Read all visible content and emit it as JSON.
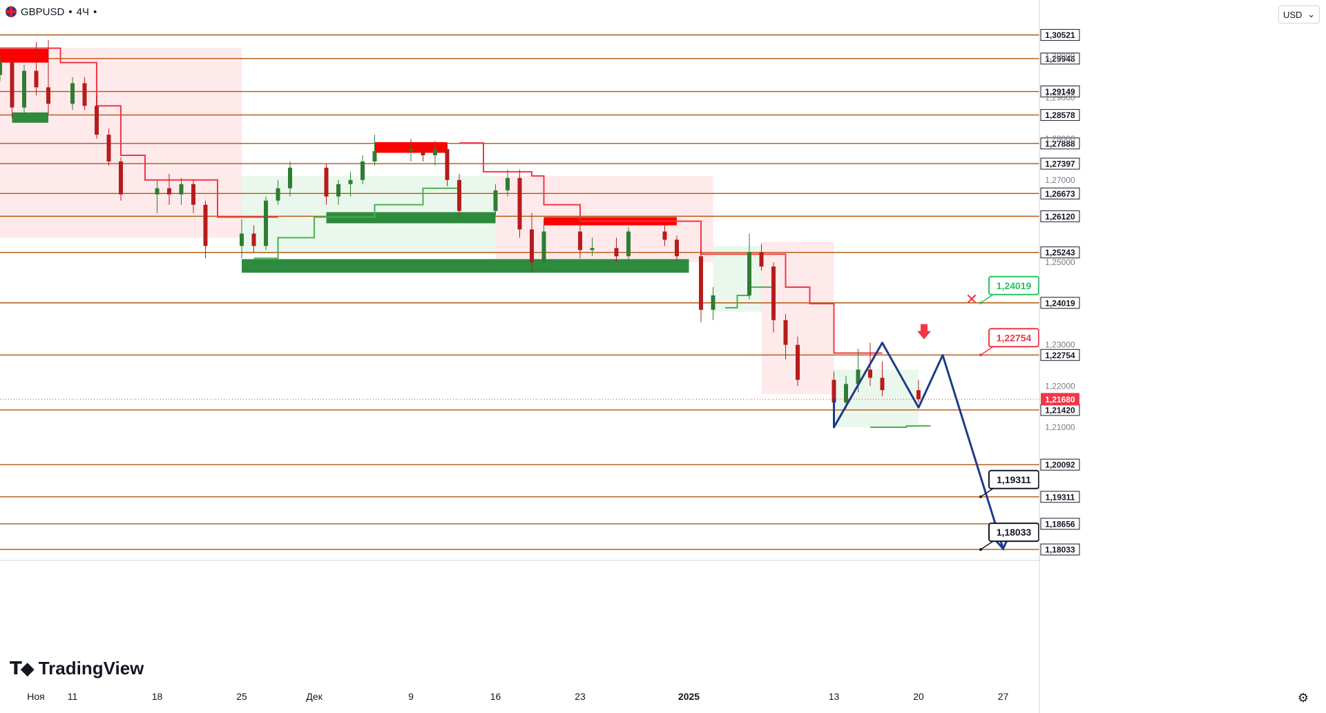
{
  "header": {
    "symbol": "GBPUSD",
    "separator": "•",
    "timeframe": "4Ч",
    "currency_label": "USD",
    "brand": "TradingView"
  },
  "icons": [
    "gbpusd-flag-icon",
    "chevron-down-icon",
    "tradingview-logo-icon",
    "settings-gear-icon",
    "arrow-down-icon",
    "cross-icon"
  ],
  "colors": {
    "level_line": "#b45309",
    "supply_zone": "#ff0000",
    "demand_zone": "#2e8b3e",
    "resistance_line": "#f23645",
    "support_line": "#4caf50",
    "projection": "#1e3a8a",
    "candle_up": "#2e7d32",
    "candle_down": "#b71c1c",
    "label_dark": "#131722",
    "current_price": "#f23645"
  },
  "chart_data": {
    "type": "candlestick",
    "title": "GBPUSD • 4Ч",
    "x_axis": {
      "ticks": [
        "Ноя",
        "11",
        "18",
        "25",
        "Дек",
        "9",
        "16",
        "23",
        "2025",
        "13",
        "20",
        "27"
      ],
      "range": [
        "2024-11-05",
        "2025-01-30"
      ]
    },
    "y_axis": {
      "range": [
        1.178,
        1.309
      ],
      "price_ticks": [
        "1,21000",
        "1,22000",
        "1,23000",
        "1,25000",
        "1,27000",
        "1,28000",
        "1,29000",
        "1,30000"
      ]
    },
    "horizontal_levels": [
      "1,30521",
      "1,29948",
      "1,29149",
      "1,28578",
      "1,27888",
      "1,27397",
      "1,26673",
      "1,26120",
      "1,25243",
      "1,24019",
      "1,22754",
      "1,21420",
      "1,20092",
      "1,19311",
      "1,18656",
      "1,18033"
    ],
    "current_price": "1,21680",
    "callouts": [
      {
        "text": "1,24019",
        "style": "green-outline",
        "marker": "cross"
      },
      {
        "text": "1,22754",
        "style": "red-outline",
        "marker": "arrow-down"
      },
      {
        "text": "1,19311",
        "style": "black-outline"
      },
      {
        "text": "1,18033",
        "style": "black-outline"
      }
    ],
    "zones": [
      {
        "type": "supply",
        "from": "2024-11-05",
        "to": "2024-11-09",
        "y": [
          1.2985,
          1.3018
        ]
      },
      {
        "type": "demand",
        "from": "2024-11-06",
        "to": "2024-11-09",
        "y": [
          1.2839,
          1.2864
        ]
      },
      {
        "type": "supply",
        "from": "2024-12-06",
        "to": "2024-12-12",
        "y": [
          1.2766,
          1.2792
        ]
      },
      {
        "type": "demand",
        "from": "2024-12-02",
        "to": "2024-12-16",
        "y": [
          1.2595,
          1.2622
        ]
      },
      {
        "type": "supply",
        "from": "2024-12-20",
        "to": "2024-12-31",
        "y": [
          1.259,
          1.261
        ]
      },
      {
        "type": "demand",
        "from": "2024-11-25",
        "to": "2025-01-01",
        "y": [
          1.2475,
          1.2508
        ]
      }
    ],
    "projection_path": [
      {
        "x": "2025-01-13",
        "y": 1.217
      },
      {
        "x": "2025-01-13",
        "y": 1.21
      },
      {
        "x": "2025-01-17",
        "y": 1.2305
      },
      {
        "x": "2025-01-20",
        "y": 1.2148
      },
      {
        "x": "2025-01-22",
        "y": 1.2275
      },
      {
        "x": "2025-01-27",
        "y": 1.1805
      }
    ],
    "candles": [
      {
        "t": "2024-11-05",
        "o": 1.2955,
        "h": 1.3002,
        "l": 1.294,
        "c": 1.2985
      },
      {
        "t": "2024-11-06",
        "o": 1.2985,
        "h": 1.301,
        "l": 1.285,
        "c": 1.2876
      },
      {
        "t": "2024-11-07",
        "o": 1.2876,
        "h": 1.298,
        "l": 1.286,
        "c": 1.2965
      },
      {
        "t": "2024-11-08",
        "o": 1.2965,
        "h": 1.3035,
        "l": 1.2905,
        "c": 1.2925
      },
      {
        "t": "2024-11-09",
        "o": 1.2925,
        "h": 1.304,
        "l": 1.286,
        "c": 1.2885
      },
      {
        "t": "2024-11-11",
        "o": 1.2885,
        "h": 1.295,
        "l": 1.287,
        "c": 1.2935
      },
      {
        "t": "2024-11-12",
        "o": 1.2935,
        "h": 1.295,
        "l": 1.287,
        "c": 1.288
      },
      {
        "t": "2024-11-13",
        "o": 1.288,
        "h": 1.2905,
        "l": 1.28,
        "c": 1.281
      },
      {
        "t": "2024-11-14",
        "o": 1.281,
        "h": 1.2825,
        "l": 1.2735,
        "c": 1.2745
      },
      {
        "t": "2024-11-15",
        "o": 1.2745,
        "h": 1.2755,
        "l": 1.265,
        "c": 1.2665
      },
      {
        "t": "2024-11-18",
        "o": 1.2665,
        "h": 1.27,
        "l": 1.262,
        "c": 1.268
      },
      {
        "t": "2024-11-19",
        "o": 1.268,
        "h": 1.2715,
        "l": 1.264,
        "c": 1.2665
      },
      {
        "t": "2024-11-20",
        "o": 1.2665,
        "h": 1.2705,
        "l": 1.264,
        "c": 1.269
      },
      {
        "t": "2024-11-21",
        "o": 1.269,
        "h": 1.27,
        "l": 1.262,
        "c": 1.264
      },
      {
        "t": "2024-11-22",
        "o": 1.264,
        "h": 1.265,
        "l": 1.251,
        "c": 1.254
      },
      {
        "t": "2024-11-25",
        "o": 1.254,
        "h": 1.2605,
        "l": 1.251,
        "c": 1.257
      },
      {
        "t": "2024-11-26",
        "o": 1.257,
        "h": 1.259,
        "l": 1.2525,
        "c": 1.254
      },
      {
        "t": "2024-11-27",
        "o": 1.254,
        "h": 1.266,
        "l": 1.253,
        "c": 1.265
      },
      {
        "t": "2024-11-28",
        "o": 1.265,
        "h": 1.27,
        "l": 1.264,
        "c": 1.268
      },
      {
        "t": "2024-11-29",
        "o": 1.268,
        "h": 1.2745,
        "l": 1.266,
        "c": 1.273
      },
      {
        "t": "2024-12-02",
        "o": 1.273,
        "h": 1.274,
        "l": 1.264,
        "c": 1.266
      },
      {
        "t": "2024-12-03",
        "o": 1.266,
        "h": 1.27,
        "l": 1.264,
        "c": 1.269
      },
      {
        "t": "2024-12-04",
        "o": 1.269,
        "h": 1.272,
        "l": 1.266,
        "c": 1.27
      },
      {
        "t": "2024-12-05",
        "o": 1.27,
        "h": 1.276,
        "l": 1.269,
        "c": 1.2745
      },
      {
        "t": "2024-12-06",
        "o": 1.2745,
        "h": 1.281,
        "l": 1.2735,
        "c": 1.277
      },
      {
        "t": "2024-12-09",
        "o": 1.277,
        "h": 1.28,
        "l": 1.2745,
        "c": 1.2775
      },
      {
        "t": "2024-12-10",
        "o": 1.2775,
        "h": 1.279,
        "l": 1.2745,
        "c": 1.276
      },
      {
        "t": "2024-12-11",
        "o": 1.276,
        "h": 1.2795,
        "l": 1.2735,
        "c": 1.2775
      },
      {
        "t": "2024-12-12",
        "o": 1.2775,
        "h": 1.279,
        "l": 1.2685,
        "c": 1.27
      },
      {
        "t": "2024-12-13",
        "o": 1.27,
        "h": 1.2715,
        "l": 1.261,
        "c": 1.2625
      },
      {
        "t": "2024-12-16",
        "o": 1.2625,
        "h": 1.269,
        "l": 1.2615,
        "c": 1.2675
      },
      {
        "t": "2024-12-17",
        "o": 1.2675,
        "h": 1.2725,
        "l": 1.266,
        "c": 1.2705
      },
      {
        "t": "2024-12-18",
        "o": 1.2705,
        "h": 1.2725,
        "l": 1.256,
        "c": 1.258
      },
      {
        "t": "2024-12-19",
        "o": 1.258,
        "h": 1.262,
        "l": 1.2475,
        "c": 1.25
      },
      {
        "t": "2024-12-20",
        "o": 1.25,
        "h": 1.2605,
        "l": 1.2485,
        "c": 1.2575
      },
      {
        "t": "2024-12-23",
        "o": 1.2575,
        "h": 1.2605,
        "l": 1.251,
        "c": 1.253
      },
      {
        "t": "2024-12-24",
        "o": 1.253,
        "h": 1.256,
        "l": 1.2515,
        "c": 1.2535
      },
      {
        "t": "2024-12-26",
        "o": 1.2535,
        "h": 1.256,
        "l": 1.25,
        "c": 1.2515
      },
      {
        "t": "2024-12-27",
        "o": 1.2515,
        "h": 1.2585,
        "l": 1.2505,
        "c": 1.2575
      },
      {
        "t": "2024-12-30",
        "o": 1.2575,
        "h": 1.259,
        "l": 1.254,
        "c": 1.2555
      },
      {
        "t": "2024-12-31",
        "o": 1.2555,
        "h": 1.2565,
        "l": 1.2505,
        "c": 1.2515
      },
      {
        "t": "2025-01-02",
        "o": 1.2515,
        "h": 1.253,
        "l": 1.2355,
        "c": 1.2385
      },
      {
        "t": "2025-01-03",
        "o": 1.2385,
        "h": 1.244,
        "l": 1.236,
        "c": 1.242
      },
      {
        "t": "2025-01-06",
        "o": 1.242,
        "h": 1.257,
        "l": 1.241,
        "c": 1.2525
      },
      {
        "t": "2025-01-07",
        "o": 1.2525,
        "h": 1.2545,
        "l": 1.248,
        "c": 1.249
      },
      {
        "t": "2025-01-08",
        "o": 1.249,
        "h": 1.25,
        "l": 1.233,
        "c": 1.236
      },
      {
        "t": "2025-01-09",
        "o": 1.236,
        "h": 1.2375,
        "l": 1.2265,
        "c": 1.23
      },
      {
        "t": "2025-01-10",
        "o": 1.23,
        "h": 1.232,
        "l": 1.22,
        "c": 1.2215
      },
      {
        "t": "2025-01-13",
        "o": 1.2215,
        "h": 1.2235,
        "l": 1.21,
        "c": 1.216
      },
      {
        "t": "2025-01-14",
        "o": 1.216,
        "h": 1.2225,
        "l": 1.2145,
        "c": 1.2205
      },
      {
        "t": "2025-01-15",
        "o": 1.2205,
        "h": 1.229,
        "l": 1.2185,
        "c": 1.224
      },
      {
        "t": "2025-01-16",
        "o": 1.224,
        "h": 1.2305,
        "l": 1.22,
        "c": 1.222
      },
      {
        "t": "2025-01-17",
        "o": 1.222,
        "h": 1.226,
        "l": 1.2175,
        "c": 1.219
      },
      {
        "t": "2025-01-20",
        "o": 1.219,
        "h": 1.2215,
        "l": 1.216,
        "c": 1.2168
      }
    ]
  }
}
